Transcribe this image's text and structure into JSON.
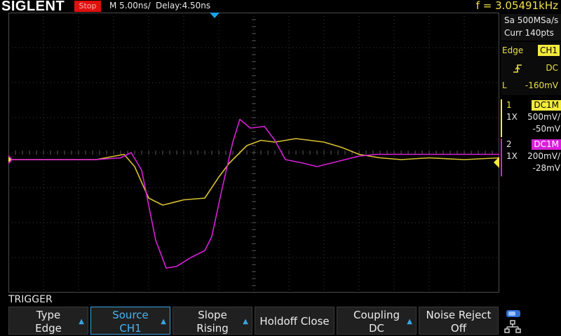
{
  "topbar": {
    "brand": "SIGLENT",
    "run_state": "Stop",
    "timebase": "M 5.00ns/",
    "delay": "Delay:4.50ns",
    "frequency": "f = 3.05491kHz"
  },
  "acquisition": {
    "sample_rate": "Sa 500MSa/s",
    "points": "Curr 140pts"
  },
  "trigger_panel": {
    "type": "Edge",
    "source": "CH1",
    "coupling": "DC",
    "level_label": "L",
    "level": "-160mV",
    "slope_icon": "rising-edge-icon"
  },
  "channels": [
    {
      "index": "1",
      "tag": "DC1M",
      "probe": "1X",
      "scale": "500mV/",
      "offset": "-50mV",
      "color": "#f2ea3c"
    },
    {
      "index": "2",
      "tag": "DC1M",
      "probe": "1X",
      "scale": "200mV/",
      "offset": "-28mV",
      "color": "#d820d8"
    }
  ],
  "menu": {
    "title": "TRIGGER",
    "softkeys": [
      {
        "label": "Type",
        "value": "Edge"
      },
      {
        "label": "Source",
        "value": "CH1"
      },
      {
        "label": "Slope",
        "value": "Rising"
      },
      {
        "label": "Holdoff Close",
        "value": ""
      },
      {
        "label": "Coupling",
        "value": "DC"
      },
      {
        "label": "Noise Reject",
        "value": "Off"
      }
    ]
  },
  "chart_data": {
    "type": "line",
    "xlabel": "",
    "ylabel": "",
    "grid": true,
    "x_divisions": 14,
    "y_divisions": 8,
    "trigger_position_div": 6,
    "series": [
      {
        "color": "#d8c030",
        "points": [
          [
            0,
            -0.2
          ],
          [
            2.5,
            -0.2
          ],
          [
            3.3,
            -0.05
          ],
          [
            3.6,
            -0.4
          ],
          [
            4.0,
            -1.3
          ],
          [
            4.4,
            -1.5
          ],
          [
            5.0,
            -1.35
          ],
          [
            5.6,
            -1.3
          ],
          [
            6.0,
            -0.7
          ],
          [
            6.3,
            -0.3
          ],
          [
            6.8,
            0.2
          ],
          [
            7.2,
            0.35
          ],
          [
            7.6,
            0.3
          ],
          [
            8.2,
            0.4
          ],
          [
            9.0,
            0.3
          ],
          [
            9.5,
            0.15
          ],
          [
            10.0,
            -0.05
          ],
          [
            10.6,
            -0.15
          ],
          [
            11.2,
            -0.2
          ],
          [
            12.0,
            -0.15
          ],
          [
            13.0,
            -0.2
          ],
          [
            14.0,
            -0.15
          ]
        ]
      },
      {
        "color": "#d820d8",
        "points": [
          [
            0,
            -0.2
          ],
          [
            2.5,
            -0.2
          ],
          [
            3.2,
            -0.15
          ],
          [
            3.5,
            -0.0
          ],
          [
            3.8,
            -0.5
          ],
          [
            4.2,
            -2.5
          ],
          [
            4.5,
            -3.3
          ],
          [
            4.8,
            -3.25
          ],
          [
            5.2,
            -3.0
          ],
          [
            5.6,
            -2.8
          ],
          [
            5.8,
            -2.4
          ],
          [
            6.1,
            -1.0
          ],
          [
            6.4,
            0.3
          ],
          [
            6.6,
            0.95
          ],
          [
            6.9,
            0.7
          ],
          [
            7.3,
            0.75
          ],
          [
            7.6,
            0.35
          ],
          [
            7.9,
            -0.2
          ],
          [
            8.4,
            -0.3
          ],
          [
            8.8,
            -0.4
          ],
          [
            9.4,
            -0.25
          ],
          [
            10.0,
            -0.1
          ],
          [
            10.5,
            -0.05
          ],
          [
            11.0,
            -0.05
          ],
          [
            12.0,
            -0.05
          ],
          [
            14.0,
            -0.05
          ]
        ]
      }
    ]
  }
}
